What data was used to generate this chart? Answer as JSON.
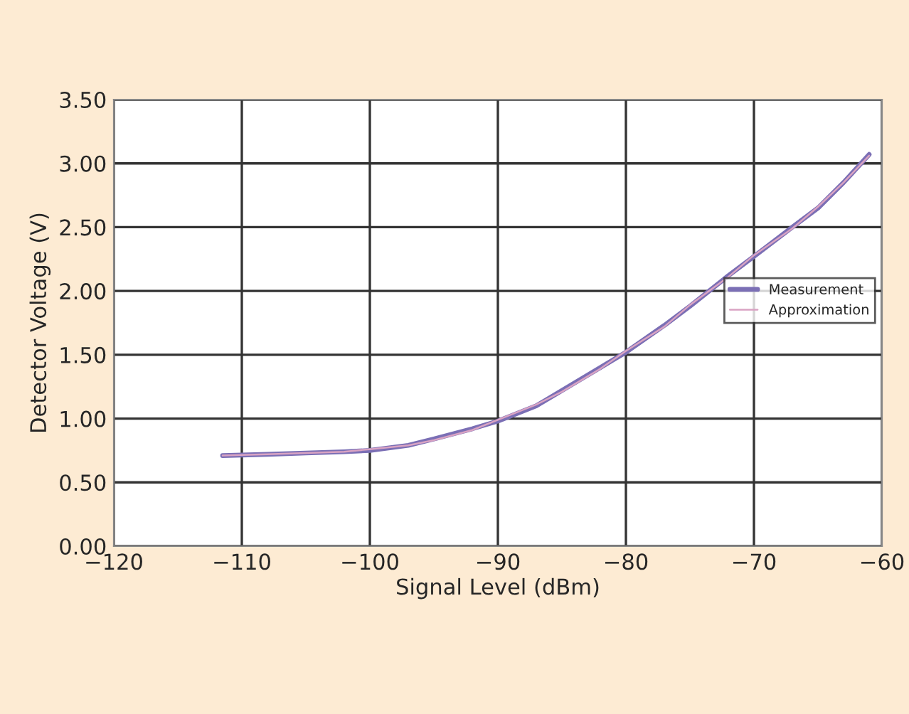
{
  "chart_data": {
    "type": "line",
    "xlabel": "Signal Level (dBm)",
    "ylabel": "Detector Voltage (V)",
    "xlim": [
      -120,
      -60
    ],
    "xticks": [
      -120,
      -110,
      -100,
      -90,
      -80,
      -70,
      -60
    ],
    "ylim": [
      0,
      3.5
    ],
    "yticks": [
      {
        "value": 0,
        "label": "0.00"
      },
      {
        "value": 0.5,
        "label": "0.50"
      },
      {
        "value": 1,
        "label": "1.00"
      },
      {
        "value": 1.5,
        "label": "1.50"
      },
      {
        "value": 2,
        "label": "2.00"
      },
      {
        "value": 2.5,
        "label": "2.50"
      },
      {
        "value": 3,
        "label": "3.00"
      },
      {
        "value": 3.5,
        "label": "3.50"
      }
    ],
    "grid": true,
    "legend": "right",
    "marker": "none",
    "line_style": "solid",
    "series": [
      {
        "name": "Measurement",
        "color": "#7b6fb5",
        "x": [
          -111.5,
          -108,
          -105,
          -102,
          -100,
          -97,
          -95,
          -92,
          -90,
          -87,
          -85,
          -82,
          -80,
          -77,
          -75,
          -72,
          -70,
          -67,
          -65,
          -63,
          -61
        ],
        "values": [
          0.71,
          0.72,
          0.73,
          0.74,
          0.75,
          0.79,
          0.84,
          0.92,
          0.98,
          1.1,
          1.22,
          1.4,
          1.52,
          1.73,
          1.88,
          2.12,
          2.27,
          2.5,
          2.65,
          2.85,
          3.07
        ]
      },
      {
        "name": "Approximation",
        "color": "#d9a3c3",
        "x": [
          -111.5,
          -108,
          -105,
          -102,
          -100,
          -97,
          -95,
          -92,
          -90,
          -87,
          -85,
          -82,
          -80,
          -77,
          -75,
          -72,
          -70,
          -67,
          -65,
          -63,
          -61
        ],
        "values": [
          0.71,
          0.72,
          0.73,
          0.74,
          0.76,
          0.79,
          0.83,
          0.91,
          0.99,
          1.11,
          1.21,
          1.39,
          1.53,
          1.72,
          1.89,
          2.11,
          2.28,
          2.49,
          2.66,
          2.85,
          3.06
        ]
      }
    ]
  }
}
